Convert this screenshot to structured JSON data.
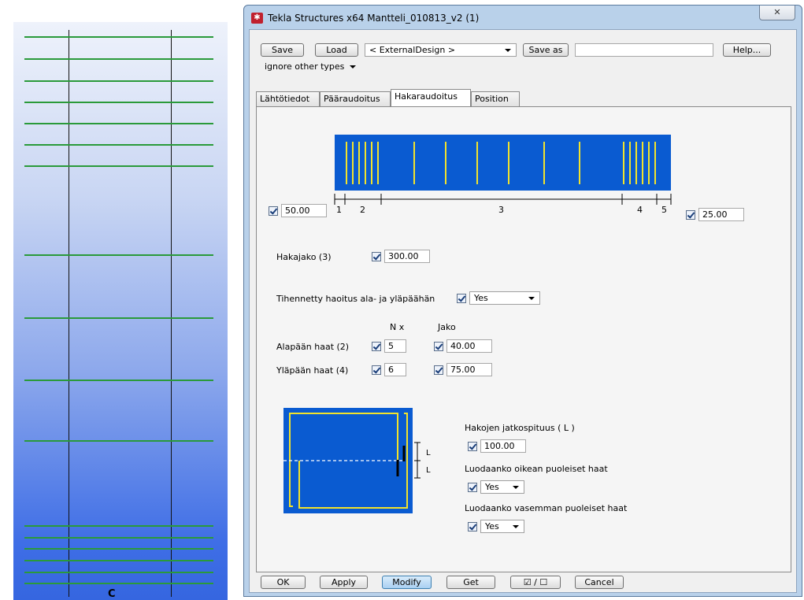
{
  "left_view": {
    "column_label": "C"
  },
  "window": {
    "title": "Tekla Structures x64  Mantteli_010813_v2 (1)",
    "close_glyph": "✕"
  },
  "toolbar": {
    "save": "Save",
    "load": "Load",
    "attribute_set": "< ExternalDesign >",
    "save_as": "Save as",
    "save_as_name": "",
    "help": "Help...",
    "type_filter": "ignore other types"
  },
  "tabs": [
    {
      "label": "Lähtötiedot"
    },
    {
      "label": "Pääraudoitus"
    },
    {
      "label": "Hakaraudoitus"
    },
    {
      "label": "Position"
    }
  ],
  "diagram": {
    "dim_labels": [
      "1",
      "2",
      "3",
      "4",
      "5"
    ],
    "colors": {
      "concrete": "#0a5bd1",
      "bar": "#f2e32b"
    }
  },
  "fields": {
    "start_offset": "50.00",
    "end_offset": "25.00",
    "hakajako_label": "Hakajako (3)",
    "hakajako_value": "300.00",
    "tihennetty_label": "Tihennetty haoitus ala- ja yläpäähän",
    "tihennetty_value": "Yes",
    "col_n": "N   x",
    "col_jako": "Jako",
    "alapaan_label": "Alapään haat (2)",
    "alapaan_n": "5",
    "alapaan_jako": "40.00",
    "ylapaan_label": "Yläpään haat (4)",
    "ylapaan_n": "6",
    "ylapaan_jako": "75.00",
    "jatkospituus_label": "Hakojen jatkospituus ( L )",
    "jatkospituus_value": "100.00",
    "oikea_label": "Luodaanko oikean puoleiset haat",
    "oikea_value": "Yes",
    "vasen_label": "Luodaanko vasemman puoleiset haat",
    "vasen_value": "Yes",
    "section_L": "L"
  },
  "bottom": {
    "ok": "OK",
    "apply": "Apply",
    "modify": "Modify",
    "get": "Get",
    "toggle": "☑ / ☐",
    "cancel": "Cancel"
  }
}
